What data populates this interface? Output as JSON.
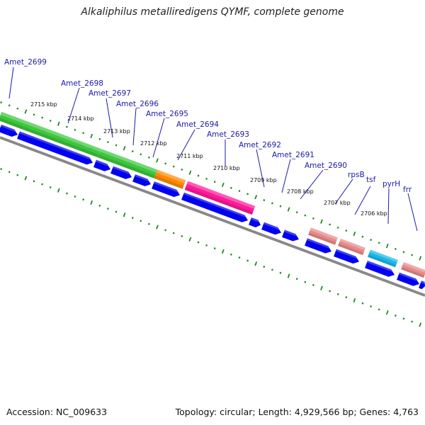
{
  "title": "Alkaliphilus metalliredigens QYMF, complete genome",
  "accession": "Accession: NC_009633",
  "stats": "Topology: circular; Length: 4,929,566 bp; Genes: 4,763",
  "colors": {
    "ring": "#888888",
    "ticks": "#1f8a1f",
    "cds": "#0000f0",
    "green_block": "#3cc73c",
    "orange_block": "#ff8a00",
    "magenta_block": "#ff1a9a",
    "salmon_block": "#e88a8a",
    "cyan_block": "#18b8e8",
    "label": "#1a1aa8"
  },
  "kbp_ticks": [
    "2715 kbp",
    "2714 kbp",
    "2713 kbp",
    "2712 kbp",
    "2711 kbp",
    "2710 kbp",
    "2709 kbp",
    "2708 kbp",
    "2707 kbp",
    "2706 kbp"
  ],
  "gene_labels": [
    "Amet_2699",
    "Amet_2698",
    "Amet_2697",
    "Amet_2696",
    "Amet_2695",
    "Amet_2694",
    "Amet_2693",
    "Amet_2692",
    "Amet_2691",
    "Amet_2690",
    "rpsB",
    "tsf",
    "pyrH",
    "frr"
  ],
  "feature_blocks": [
    {
      "name": "green",
      "color_key": "green_block"
    },
    {
      "name": "orange",
      "color_key": "orange_block"
    },
    {
      "name": "magenta",
      "color_key": "magenta_block"
    },
    {
      "name": "salmon",
      "color_key": "salmon_block"
    },
    {
      "name": "cyan",
      "color_key": "cyan_block"
    }
  ]
}
